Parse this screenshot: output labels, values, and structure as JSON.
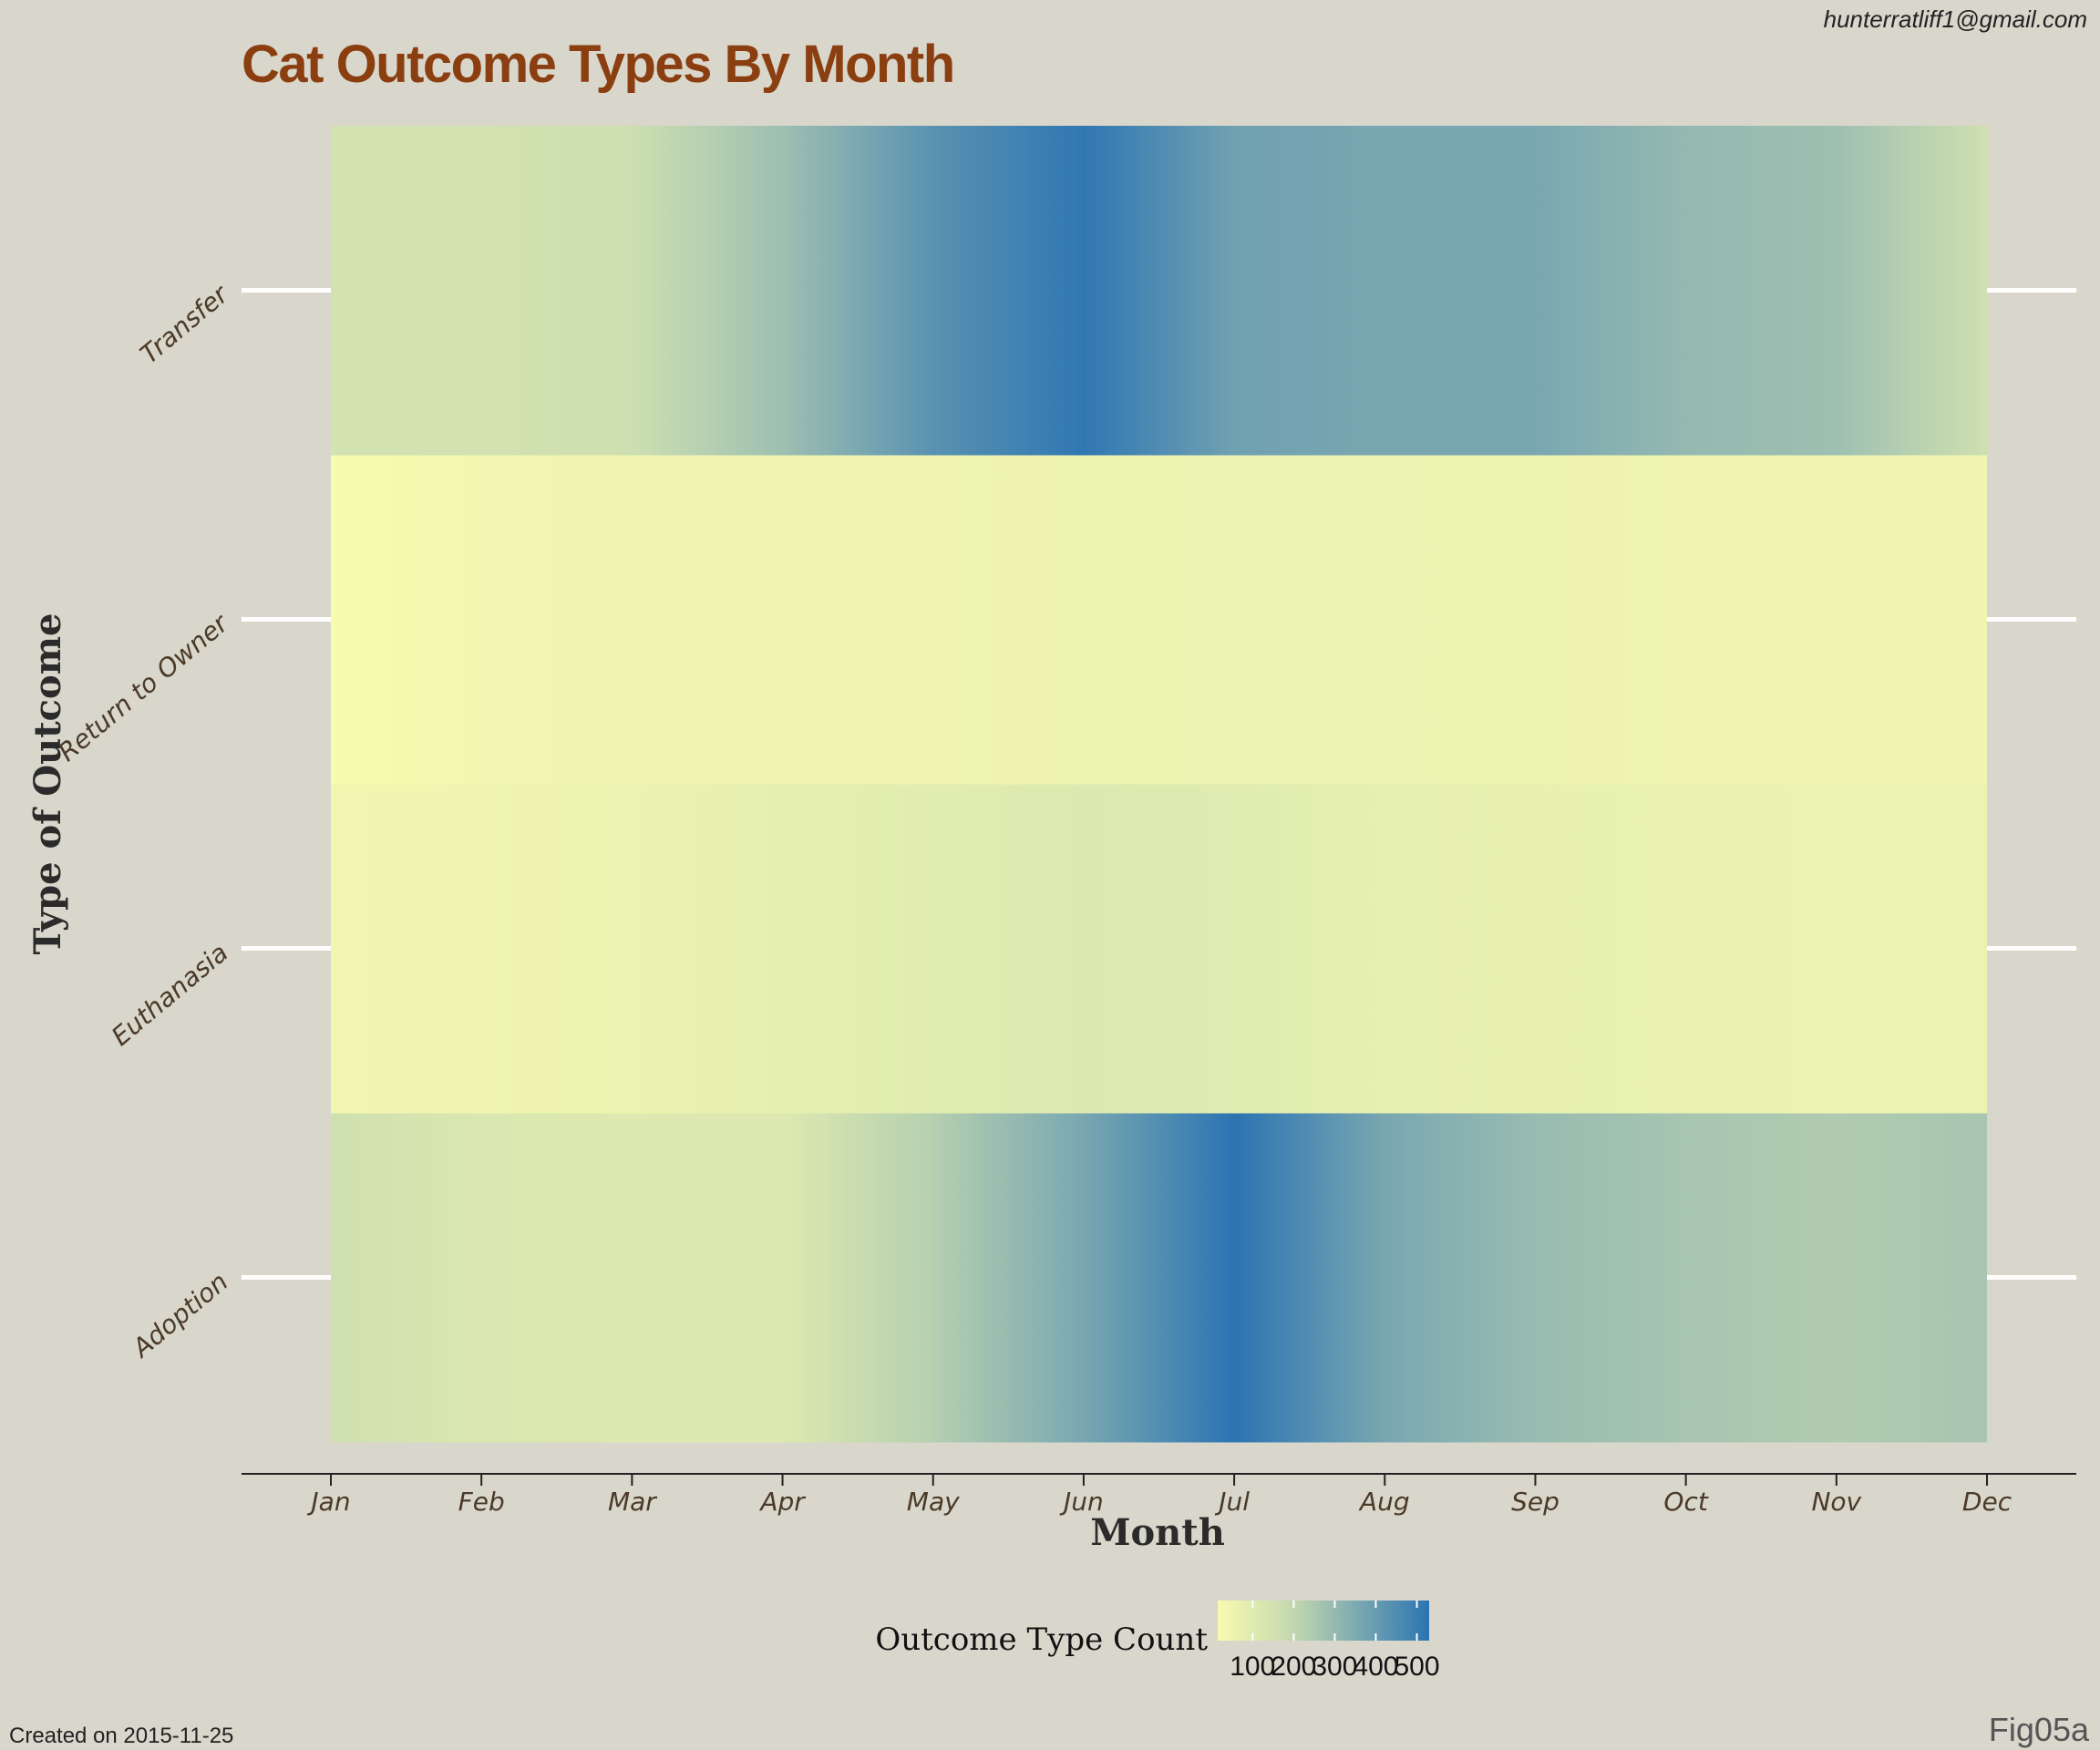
{
  "header": {
    "email": "hunterratliff1@gmail.com"
  },
  "footer": {
    "created": "Created on 2015-11-25",
    "fig_id": "Fig05a"
  },
  "colors": {
    "background": "#d9d6cb",
    "low": "#f7fbb0",
    "mid": "#c5d9b0",
    "high": "#2b74b2",
    "title": "#8b3e10",
    "gridline": "#ffffff"
  },
  "chart_data": {
    "type": "heatmap",
    "title": "Cat Outcome Types By Month",
    "xlabel": "Month",
    "ylabel": "Type of Outcome",
    "x": [
      "Jan",
      "Feb",
      "Mar",
      "Apr",
      "May",
      "Jun",
      "Jul",
      "Aug",
      "Sep",
      "Oct",
      "Nov",
      "Dec"
    ],
    "y": [
      "Adoption",
      "Euthanasia",
      "Return to Owner",
      "Transfer"
    ],
    "series": [
      {
        "name": "Adoption",
        "values": [
          160,
          120,
          110,
          110,
          230,
          360,
          530,
          360,
          290,
          260,
          240,
          260
        ]
      },
      {
        "name": "Euthanasia",
        "values": [
          35,
          45,
          55,
          80,
          95,
          110,
          100,
          75,
          70,
          65,
          60,
          60
        ]
      },
      {
        "name": "Return to Owner",
        "values": [
          15,
          35,
          40,
          45,
          45,
          50,
          55,
          55,
          50,
          45,
          45,
          40
        ]
      },
      {
        "name": "Transfer",
        "values": [
          150,
          150,
          165,
          280,
          430,
          520,
          380,
          360,
          360,
          300,
          280,
          160
        ]
      }
    ],
    "legend": {
      "title": "Outcome Type Count",
      "ticks": [
        100,
        200,
        300,
        400,
        500
      ],
      "range": [
        15,
        530
      ],
      "position": "bottom"
    }
  }
}
